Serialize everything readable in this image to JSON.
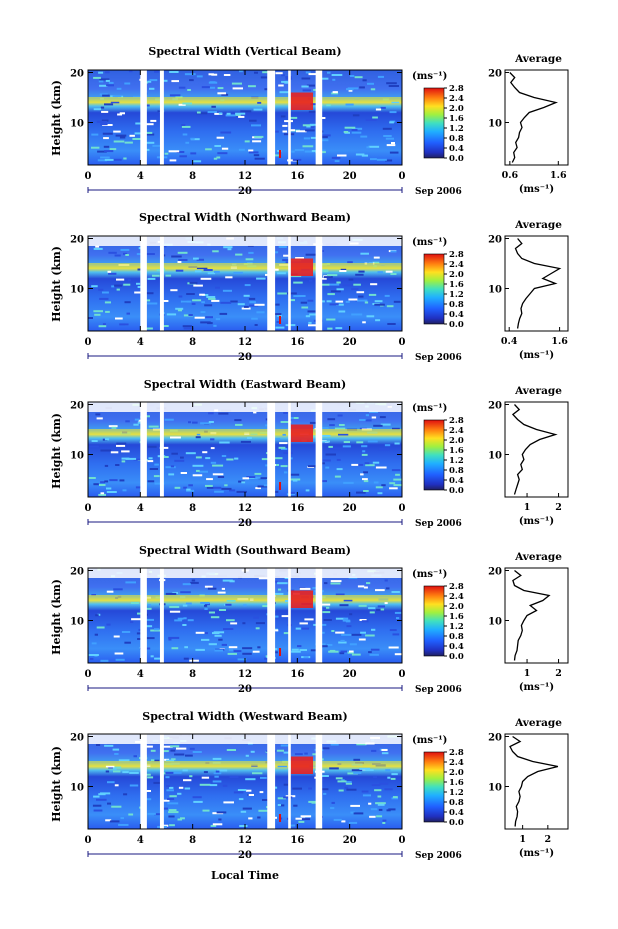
{
  "figure": {
    "xlabel": "Local Time",
    "date_label": "Sep 2006",
    "day_label": "20",
    "colorbar_unit": "(ms⁻¹)",
    "avg_title": "Average",
    "avg_unit": "(ms⁻¹)"
  },
  "chart_data": [
    {
      "type": "heatmap",
      "title": "Spectral Width (Vertical Beam)",
      "ylabel": "Height (km)",
      "xlabel": "",
      "x_ticks": [
        "0",
        "4",
        "8",
        "12",
        "16",
        "20",
        "0"
      ],
      "y_ticks": [
        "10",
        "20"
      ],
      "xlim": [
        0,
        24
      ],
      "ylim": [
        1.5,
        20.5
      ],
      "colorbar": {
        "ticks": [
          "2.8",
          "2.4",
          "2.0",
          "1.6",
          "1.2",
          "0.8",
          "0.4",
          "0.0"
        ],
        "range": [
          0,
          2.8
        ]
      },
      "gaps": [
        [
          4.0,
          4.5
        ],
        [
          5.5,
          5.8
        ],
        [
          13.7,
          14.3
        ],
        [
          15.3,
          15.5
        ],
        [
          17.4,
          17.9
        ]
      ],
      "avg_profile": {
        "xlim": [
          0.5,
          1.8
        ],
        "x_ticks": [
          "0.6",
          "1.6"
        ],
        "x_tick_values": [
          0.6,
          1.6
        ],
        "height": [
          2,
          3,
          4,
          5,
          6,
          7,
          8,
          9,
          10,
          11,
          12,
          13,
          14,
          15,
          16,
          17,
          18,
          19,
          20
        ],
        "width": [
          0.65,
          0.7,
          0.68,
          0.75,
          0.72,
          0.78,
          0.8,
          0.85,
          0.82,
          0.9,
          1.0,
          1.3,
          1.55,
          1.1,
          0.8,
          0.7,
          0.62,
          0.7,
          0.6
        ]
      }
    },
    {
      "type": "heatmap",
      "title": "Spectral Width (Northward Beam)",
      "ylabel": "Height (km)",
      "xlabel": "",
      "x_ticks": [
        "0",
        "4",
        "8",
        "12",
        "16",
        "20",
        "0"
      ],
      "y_ticks": [
        "10",
        "20"
      ],
      "xlim": [
        0,
        24
      ],
      "ylim": [
        1.5,
        20.5
      ],
      "colorbar": {
        "ticks": [
          "2.8",
          "2.4",
          "2.0",
          "1.6",
          "1.2",
          "0.8",
          "0.4",
          "0.0"
        ],
        "range": [
          0,
          2.8
        ]
      },
      "gaps": [
        [
          4.0,
          4.5
        ],
        [
          5.5,
          5.8
        ],
        [
          13.7,
          14.3
        ],
        [
          15.3,
          15.5
        ],
        [
          17.4,
          17.9
        ]
      ],
      "avg_profile": {
        "xlim": [
          0.3,
          1.8
        ],
        "x_ticks": [
          "0.4",
          "1.6"
        ],
        "x_tick_values": [
          0.4,
          1.6
        ],
        "height": [
          2,
          3,
          4,
          5,
          6,
          7,
          8,
          9,
          10,
          11,
          12,
          13,
          14,
          15,
          16,
          17,
          18,
          19,
          20
        ],
        "width": [
          0.6,
          0.62,
          0.65,
          0.7,
          0.68,
          0.72,
          0.8,
          0.9,
          1.0,
          1.5,
          1.2,
          1.4,
          1.6,
          1.0,
          0.7,
          0.6,
          0.55,
          0.7,
          0.6
        ]
      }
    },
    {
      "type": "heatmap",
      "title": "Spectral Width (Eastward Beam)",
      "ylabel": "Height (km)",
      "xlabel": "",
      "x_ticks": [
        "0",
        "4",
        "8",
        "12",
        "16",
        "20",
        "0"
      ],
      "y_ticks": [
        "10",
        "20"
      ],
      "xlim": [
        0,
        24
      ],
      "ylim": [
        1.5,
        20.5
      ],
      "colorbar": {
        "ticks": [
          "2.8",
          "2.4",
          "2.0",
          "1.6",
          "1.2",
          "0.8",
          "0.4",
          "0.0"
        ],
        "range": [
          0,
          2.8
        ]
      },
      "gaps": [
        [
          4.0,
          4.5
        ],
        [
          5.5,
          5.8
        ],
        [
          13.7,
          14.3
        ],
        [
          15.3,
          15.5
        ],
        [
          17.4,
          17.9
        ]
      ],
      "avg_profile": {
        "xlim": [
          0.3,
          2.3
        ],
        "x_ticks": [
          "1",
          "2"
        ],
        "x_tick_values": [
          1,
          2
        ],
        "height": [
          2,
          3,
          4,
          5,
          6,
          7,
          8,
          9,
          10,
          11,
          12,
          13,
          14,
          15,
          16,
          17,
          18,
          19,
          20
        ],
        "width": [
          0.6,
          0.65,
          0.7,
          0.75,
          0.7,
          0.85,
          0.8,
          0.9,
          0.85,
          0.95,
          1.1,
          1.4,
          1.9,
          1.3,
          0.9,
          0.7,
          0.55,
          0.75,
          0.6
        ]
      }
    },
    {
      "type": "heatmap",
      "title": "Spectral Width (Southward Beam)",
      "ylabel": "Height (km)",
      "xlabel": "",
      "x_ticks": [
        "0",
        "4",
        "8",
        "12",
        "16",
        "20",
        "0"
      ],
      "y_ticks": [
        "10",
        "20"
      ],
      "xlim": [
        0,
        24
      ],
      "ylim": [
        1.5,
        20.5
      ],
      "colorbar": {
        "ticks": [
          "2.8",
          "2.4",
          "2.0",
          "1.6",
          "1.2",
          "0.8",
          "0.4",
          "0.0"
        ],
        "range": [
          0,
          2.8
        ]
      },
      "gaps": [
        [
          4.0,
          4.5
        ],
        [
          5.5,
          5.8
        ],
        [
          13.7,
          14.3
        ],
        [
          15.3,
          15.5
        ],
        [
          17.4,
          17.9
        ]
      ],
      "avg_profile": {
        "xlim": [
          0.3,
          2.3
        ],
        "x_ticks": [
          "1",
          "2"
        ],
        "x_tick_values": [
          1,
          2
        ],
        "height": [
          2,
          3,
          4,
          5,
          6,
          7,
          8,
          9,
          10,
          11,
          12,
          13,
          14,
          15,
          16,
          17,
          18,
          19,
          20
        ],
        "width": [
          0.6,
          0.62,
          0.68,
          0.7,
          0.72,
          0.8,
          0.85,
          0.82,
          0.9,
          1.0,
          1.3,
          1.1,
          1.5,
          1.7,
          0.9,
          0.6,
          0.55,
          0.8,
          0.6
        ]
      }
    },
    {
      "type": "heatmap",
      "title": "Spectral Width (Westward Beam)",
      "ylabel": "Height (km)",
      "xlabel": "Local Time",
      "x_ticks": [
        "0",
        "4",
        "8",
        "12",
        "16",
        "20",
        "0"
      ],
      "y_ticks": [
        "10",
        "20"
      ],
      "xlim": [
        0,
        24
      ],
      "ylim": [
        1.5,
        20.5
      ],
      "colorbar": {
        "ticks": [
          "2.8",
          "2.4",
          "2.0",
          "1.6",
          "1.2",
          "0.8",
          "0.4",
          "0.0"
        ],
        "range": [
          0,
          2.8
        ]
      },
      "gaps": [
        [
          4.0,
          4.5
        ],
        [
          5.5,
          5.8
        ],
        [
          13.7,
          14.3
        ],
        [
          15.3,
          15.5
        ],
        [
          17.4,
          17.9
        ]
      ],
      "avg_profile": {
        "xlim": [
          0.3,
          2.8
        ],
        "x_ticks": [
          "1",
          "2"
        ],
        "x_tick_values": [
          1,
          2
        ],
        "height": [
          2,
          3,
          4,
          5,
          6,
          7,
          8,
          9,
          10,
          11,
          12,
          13,
          14,
          15,
          16,
          17,
          18,
          19,
          20
        ],
        "width": [
          0.7,
          0.72,
          0.78,
          0.8,
          0.75,
          0.85,
          0.9,
          0.85,
          0.95,
          1.0,
          1.2,
          1.6,
          2.4,
          1.4,
          0.8,
          0.6,
          0.5,
          0.9,
          0.6
        ]
      }
    }
  ]
}
